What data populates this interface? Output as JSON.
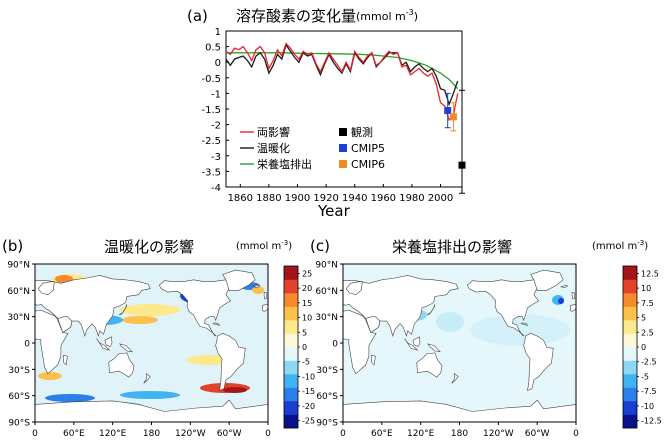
{
  "chart_data": [
    {
      "type": "line",
      "panel_label": "(a)",
      "title": "溶存酸素の変化量",
      "title_unit": "(mmol m",
      "title_unit_sup": "-3",
      "title_unit_close": ")",
      "xlabel": "Year",
      "ylabel": "",
      "xlim": [
        1850,
        2015
      ],
      "ylim": [
        -4,
        1
      ],
      "xticks": [
        "1860",
        "1880",
        "1900",
        "1920",
        "1940",
        "1960",
        "1980",
        "2000"
      ],
      "yticks": [
        "1",
        "0.5",
        "0",
        "-0.5",
        "-1",
        "-1.5",
        "-2",
        "-2.5",
        "-3",
        "-3.5",
        "-4"
      ],
      "series": [
        {
          "name": "両影響",
          "color": "#e8262b",
          "x": [
            1850,
            1853,
            1856,
            1859,
            1862,
            1865,
            1868,
            1871,
            1874,
            1877,
            1880,
            1883,
            1886,
            1889,
            1892,
            1895,
            1898,
            1901,
            1904,
            1907,
            1910,
            1913,
            1916,
            1919,
            1922,
            1925,
            1928,
            1931,
            1934,
            1937,
            1940,
            1943,
            1946,
            1949,
            1952,
            1955,
            1958,
            1961,
            1964,
            1967,
            1970,
            1973,
            1976,
            1979,
            1982,
            1985,
            1988,
            1991,
            1994,
            1997,
            2000,
            2003,
            2006,
            2009,
            2012
          ],
          "y": [
            0.35,
            0.25,
            0.45,
            0.4,
            0.5,
            0.3,
            0.05,
            0.4,
            0.5,
            0.3,
            -0.2,
            0.05,
            0.4,
            0.2,
            0.6,
            0.45,
            0.25,
            0.1,
            0.35,
            0.25,
            0.3,
            -0.05,
            -0.3,
            0.0,
            0.3,
            0.1,
            -0.1,
            -0.3,
            0.0,
            -0.25,
            0.35,
            0.15,
            0.0,
            0.2,
            0.3,
            -0.1,
            0.0,
            0.2,
            0.35,
            0.25,
            0.3,
            -0.15,
            -0.1,
            -0.4,
            -0.3,
            -0.2,
            -0.35,
            -0.45,
            -0.35,
            -0.7,
            -1.3,
            -1.4,
            -1.85,
            -1.7,
            -1.0
          ]
        },
        {
          "name": "温暖化",
          "color": "#1a1a1a",
          "x": [
            1850,
            1853,
            1856,
            1859,
            1862,
            1865,
            1868,
            1871,
            1874,
            1877,
            1880,
            1883,
            1886,
            1889,
            1892,
            1895,
            1898,
            1901,
            1904,
            1907,
            1910,
            1913,
            1916,
            1919,
            1922,
            1925,
            1928,
            1931,
            1934,
            1937,
            1940,
            1943,
            1946,
            1949,
            1952,
            1955,
            1958,
            1961,
            1964,
            1967,
            1970,
            1973,
            1976,
            1979,
            1982,
            1985,
            1988,
            1991,
            1994,
            1997,
            2000,
            2003,
            2006,
            2009,
            2012
          ],
          "y": [
            0.1,
            -0.1,
            0.1,
            0.15,
            0.2,
            0.05,
            -0.15,
            0.2,
            0.3,
            0.1,
            -0.35,
            -0.1,
            0.25,
            0.1,
            0.55,
            0.35,
            0.15,
            0.0,
            0.3,
            0.2,
            0.25,
            -0.1,
            -0.4,
            -0.05,
            0.25,
            0.0,
            -0.2,
            -0.35,
            -0.05,
            -0.3,
            0.3,
            0.1,
            -0.05,
            0.15,
            0.3,
            -0.15,
            0.0,
            0.15,
            0.3,
            0.3,
            0.3,
            -0.1,
            0.0,
            -0.3,
            -0.15,
            -0.05,
            -0.2,
            -0.3,
            -0.2,
            -0.45,
            -0.85,
            -0.9,
            -1.35,
            -1.0,
            -0.6
          ]
        },
        {
          "name": "栄養塩排出",
          "color": "#2ca02c",
          "x": [
            1850,
            1870,
            1890,
            1910,
            1930,
            1950,
            1960,
            1970,
            1980,
            1990,
            2000,
            2006,
            2012
          ],
          "y": [
            0.3,
            0.3,
            0.3,
            0.28,
            0.27,
            0.24,
            0.2,
            0.15,
            0.05,
            -0.1,
            -0.35,
            -0.55,
            -0.85
          ]
        },
        {
          "name": "観測",
          "color": "#000000",
          "marker": "square",
          "x": [
            2015
          ],
          "y": [
            -3.3
          ],
          "err_low": [
            -4.2
          ],
          "err_high": [
            -0.9
          ]
        },
        {
          "name": "CMIP5",
          "color": "#1f3fd6",
          "marker": "square",
          "x": [
            2005
          ],
          "y": [
            -1.55
          ],
          "err_low": [
            -2.1
          ],
          "err_high": [
            -1.0
          ]
        },
        {
          "name": "CMIP6",
          "color": "#f08a24",
          "marker": "square",
          "x": [
            2009
          ],
          "y": [
            -1.75
          ],
          "err_low": [
            -2.2
          ],
          "err_high": [
            -1.3
          ]
        }
      ]
    },
    {
      "type": "heatmap",
      "panel_label": "(b)",
      "title": "温暖化の影響",
      "unit": "(mmol m",
      "unit_sup": "-3",
      "unit_close": ")",
      "xticks": [
        "0",
        "60°E",
        "120°E",
        "180",
        "120°W",
        "60°W",
        "0"
      ],
      "yticks": [
        "90°N",
        "60°N",
        "30°N",
        "0",
        "30°S",
        "60°S",
        "90°S"
      ],
      "colorbar_ticks": [
        "25",
        "20",
        "15",
        "10",
        "5",
        "0",
        "-5",
        "-10",
        "-15",
        "-20",
        "-25"
      ],
      "colorbar_range": [
        -27.5,
        27.5
      ]
    },
    {
      "type": "heatmap",
      "panel_label": "(c)",
      "title": "栄養塩排出の影響",
      "unit": "(mmol m",
      "unit_sup": "-3",
      "unit_close": ")",
      "xticks": [
        "0",
        "60°E",
        "120°E",
        "180",
        "120°W",
        "60°W",
        "0"
      ],
      "yticks": [
        "90°N",
        "60°N",
        "30°N",
        "0",
        "30°S",
        "60°S",
        "90°S"
      ],
      "colorbar_ticks": [
        "12.5",
        "10",
        "7.5",
        "5",
        "2.5",
        "0",
        "-2.5",
        "-5",
        "-7.5",
        "-10",
        "-12.5"
      ],
      "colorbar_range": [
        -13.75,
        13.75
      ]
    }
  ],
  "colors": {
    "colormap": [
      "#08108a",
      "#1a3fd0",
      "#2b7fe8",
      "#41b3f2",
      "#8fd8f5",
      "#e6f7fb",
      "#fbf9d6",
      "#fde98a",
      "#fdc04a",
      "#f98a2b",
      "#e3422a",
      "#a3141b"
    ],
    "land": "#ffffff",
    "coast": "#444444"
  }
}
